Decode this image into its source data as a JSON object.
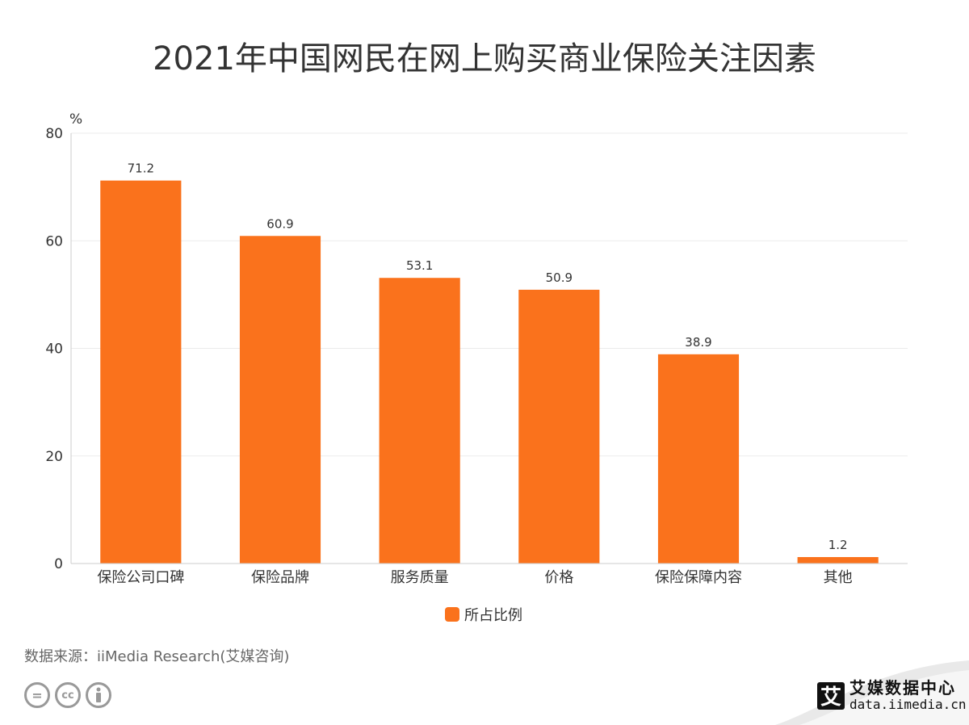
{
  "title": "2021年中国网民在网上购买商业保险关注因素",
  "source": "数据来源：iiMedia Research(艾媒咨询)",
  "brand": {
    "name": "艾媒数据中心",
    "url": "data.iimedia.cn",
    "logo_char": "艾"
  },
  "license_icons": [
    "equal-icon",
    "cc-icon",
    "person-icon"
  ],
  "colors": {
    "bar": "#fa721c",
    "grid": "#ebebeb",
    "axis": "#cccccc",
    "text": "#333333"
  },
  "chart_data": {
    "type": "bar",
    "categories": [
      "保险公司口碑",
      "保险品牌",
      "服务质量",
      "价格",
      "保险保障内容",
      "其他"
    ],
    "series": [
      {
        "name": "所占比例",
        "values": [
          71.2,
          60.9,
          53.1,
          50.9,
          38.9,
          1.2
        ]
      }
    ],
    "yunit": "%",
    "ylim": [
      0,
      80
    ],
    "yticks": [
      0,
      20,
      40,
      60,
      80
    ],
    "grid": true,
    "legend": "bottom-center"
  }
}
